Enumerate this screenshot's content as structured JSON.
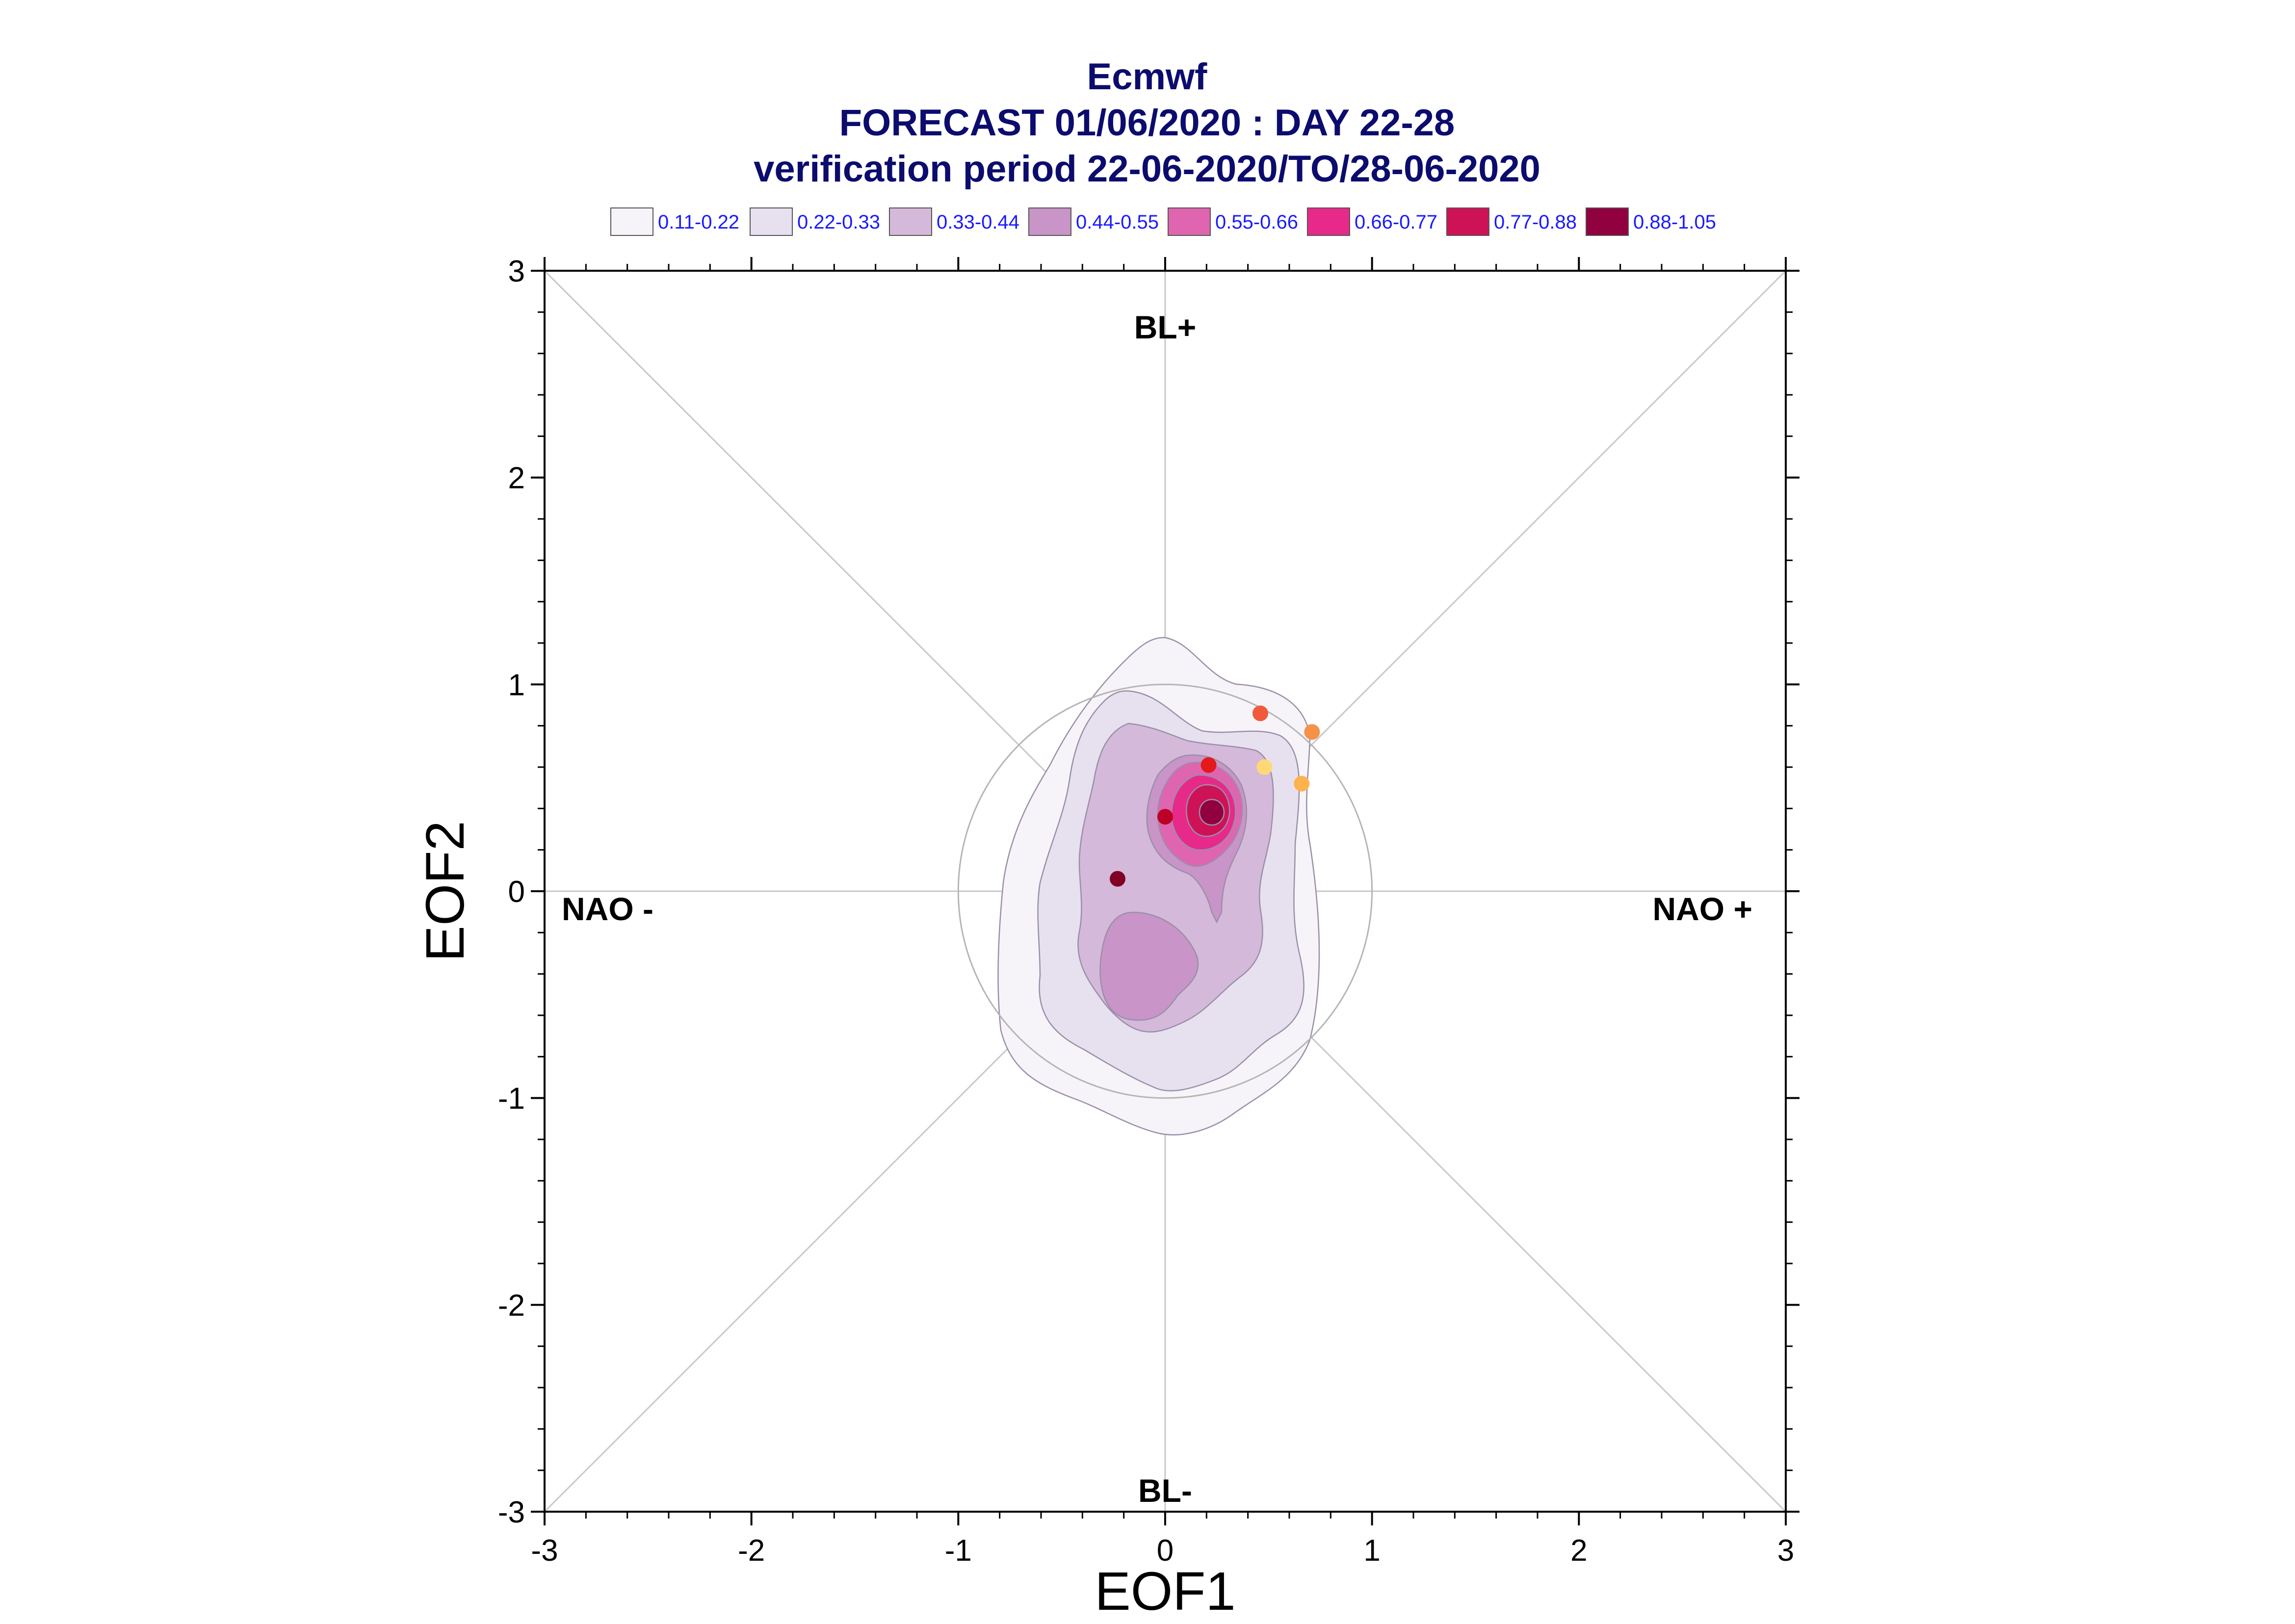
{
  "chart_data": {
    "type": "scatter",
    "title": [
      "Ecmwf",
      "FORECAST 01/06/2020 : DAY 22-28",
      "verification period 22-06-2020/TO/28-06-2020"
    ],
    "xlabel": "EOF1",
    "ylabel": "EOF2",
    "xlim": [
      -3,
      3
    ],
    "ylim": [
      -3,
      3
    ],
    "x_ticks": [
      "-3",
      "-2",
      "-1",
      "0",
      "1",
      "2",
      "3"
    ],
    "y_ticks": [
      "-3",
      "-2",
      "-1",
      "0",
      "1",
      "2",
      "3"
    ],
    "regime_labels": {
      "top": "BL+",
      "bottom": "BL-",
      "left": "NAO -",
      "right": "NAO +"
    },
    "grid": false,
    "reference_circle_radius": 1,
    "legend": [
      {
        "label": "0.11-0.22",
        "color": "#f7f4f9"
      },
      {
        "label": "0.22-0.33",
        "color": "#e7e1ef"
      },
      {
        "label": "0.33-0.44",
        "color": "#d4b9da"
      },
      {
        "label": "0.44-0.55",
        "color": "#c994c7"
      },
      {
        "label": "0.55-0.66",
        "color": "#df65b0"
      },
      {
        "label": "0.66-0.77",
        "color": "#e7298a"
      },
      {
        "label": "0.77-0.88",
        "color": "#ce1256"
      },
      {
        "label": "0.88-1.05",
        "color": "#91003f"
      }
    ],
    "density_peak": [
      0.22,
      0.38
    ],
    "points": [
      {
        "x": 0.46,
        "y": 0.86,
        "color": "#f05a3c"
      },
      {
        "x": 0.71,
        "y": 0.77,
        "color": "#f5924a"
      },
      {
        "x": 0.48,
        "y": 0.6,
        "color": "#fed976"
      },
      {
        "x": 0.66,
        "y": 0.52,
        "color": "#feb24c"
      },
      {
        "x": 0.21,
        "y": 0.61,
        "color": "#e31a1c"
      },
      {
        "x": 0.0,
        "y": 0.36,
        "color": "#bd0026"
      },
      {
        "x": -0.23,
        "y": 0.06,
        "color": "#800026"
      }
    ]
  }
}
